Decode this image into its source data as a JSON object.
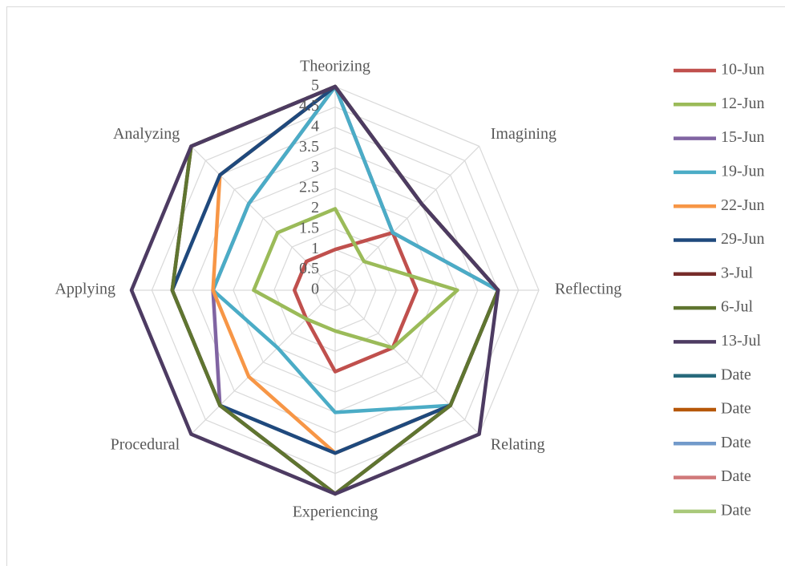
{
  "chart_data": {
    "type": "radar",
    "categories": [
      "Theorizing",
      "Imagining",
      "Reflecting",
      "Relating",
      "Experiencing",
      "Procedural",
      "Applying",
      "Analyzing"
    ],
    "ylim": [
      0,
      5
    ],
    "yticks": [
      0,
      0.5,
      1,
      1.5,
      2,
      2.5,
      3,
      3.5,
      4,
      4.5,
      5
    ],
    "grid": true,
    "legend": "right",
    "series": [
      {
        "name": "10-Jun",
        "color": "#c0504d",
        "values": [
          1,
          2,
          2,
          2,
          2,
          1,
          1,
          1
        ]
      },
      {
        "name": "12-Jun",
        "color": "#9bbb59",
        "values": [
          2,
          1,
          3,
          2,
          1,
          1,
          2,
          2
        ]
      },
      {
        "name": "15-Jun",
        "color": "#8064a2",
        "values": [
          5,
          2,
          4,
          4,
          5,
          4,
          3,
          3
        ]
      },
      {
        "name": "19-Jun",
        "color": "#4bacc6",
        "values": [
          5,
          2,
          4,
          4,
          3,
          2,
          3,
          3
        ]
      },
      {
        "name": "22-Jun",
        "color": "#f79646",
        "values": [
          5,
          3,
          4,
          4,
          4,
          3,
          3,
          4
        ]
      },
      {
        "name": "29-Jun",
        "color": "#1f497d",
        "values": [
          5,
          3,
          4,
          4,
          4,
          4,
          4,
          4
        ]
      },
      {
        "name": "3-Jul",
        "color": "#772c2a",
        "values": [
          5,
          3,
          4,
          4,
          5,
          4,
          4,
          5
        ]
      },
      {
        "name": "6-Jul",
        "color": "#5f7530",
        "values": [
          5,
          3,
          4,
          4,
          5,
          4,
          4,
          5
        ]
      },
      {
        "name": "13-Jul",
        "color": "#4d3b62",
        "values": [
          5,
          3,
          4,
          5,
          5,
          5,
          5,
          5
        ]
      },
      {
        "name": "Date",
        "color": "#276a7c",
        "values": [
          null,
          null,
          null,
          null,
          null,
          null,
          null,
          null
        ]
      },
      {
        "name": "Date",
        "color": "#b65708",
        "values": [
          null,
          null,
          null,
          null,
          null,
          null,
          null,
          null
        ]
      },
      {
        "name": "Date",
        "color": "#729aca",
        "values": [
          null,
          null,
          null,
          null,
          null,
          null,
          null,
          null
        ]
      },
      {
        "name": "Date",
        "color": "#d0797a",
        "values": [
          null,
          null,
          null,
          null,
          null,
          null,
          null,
          null
        ]
      },
      {
        "name": "Date",
        "color": "#a9c97a",
        "values": [
          null,
          null,
          null,
          null,
          null,
          null,
          null,
          null
        ]
      }
    ]
  }
}
